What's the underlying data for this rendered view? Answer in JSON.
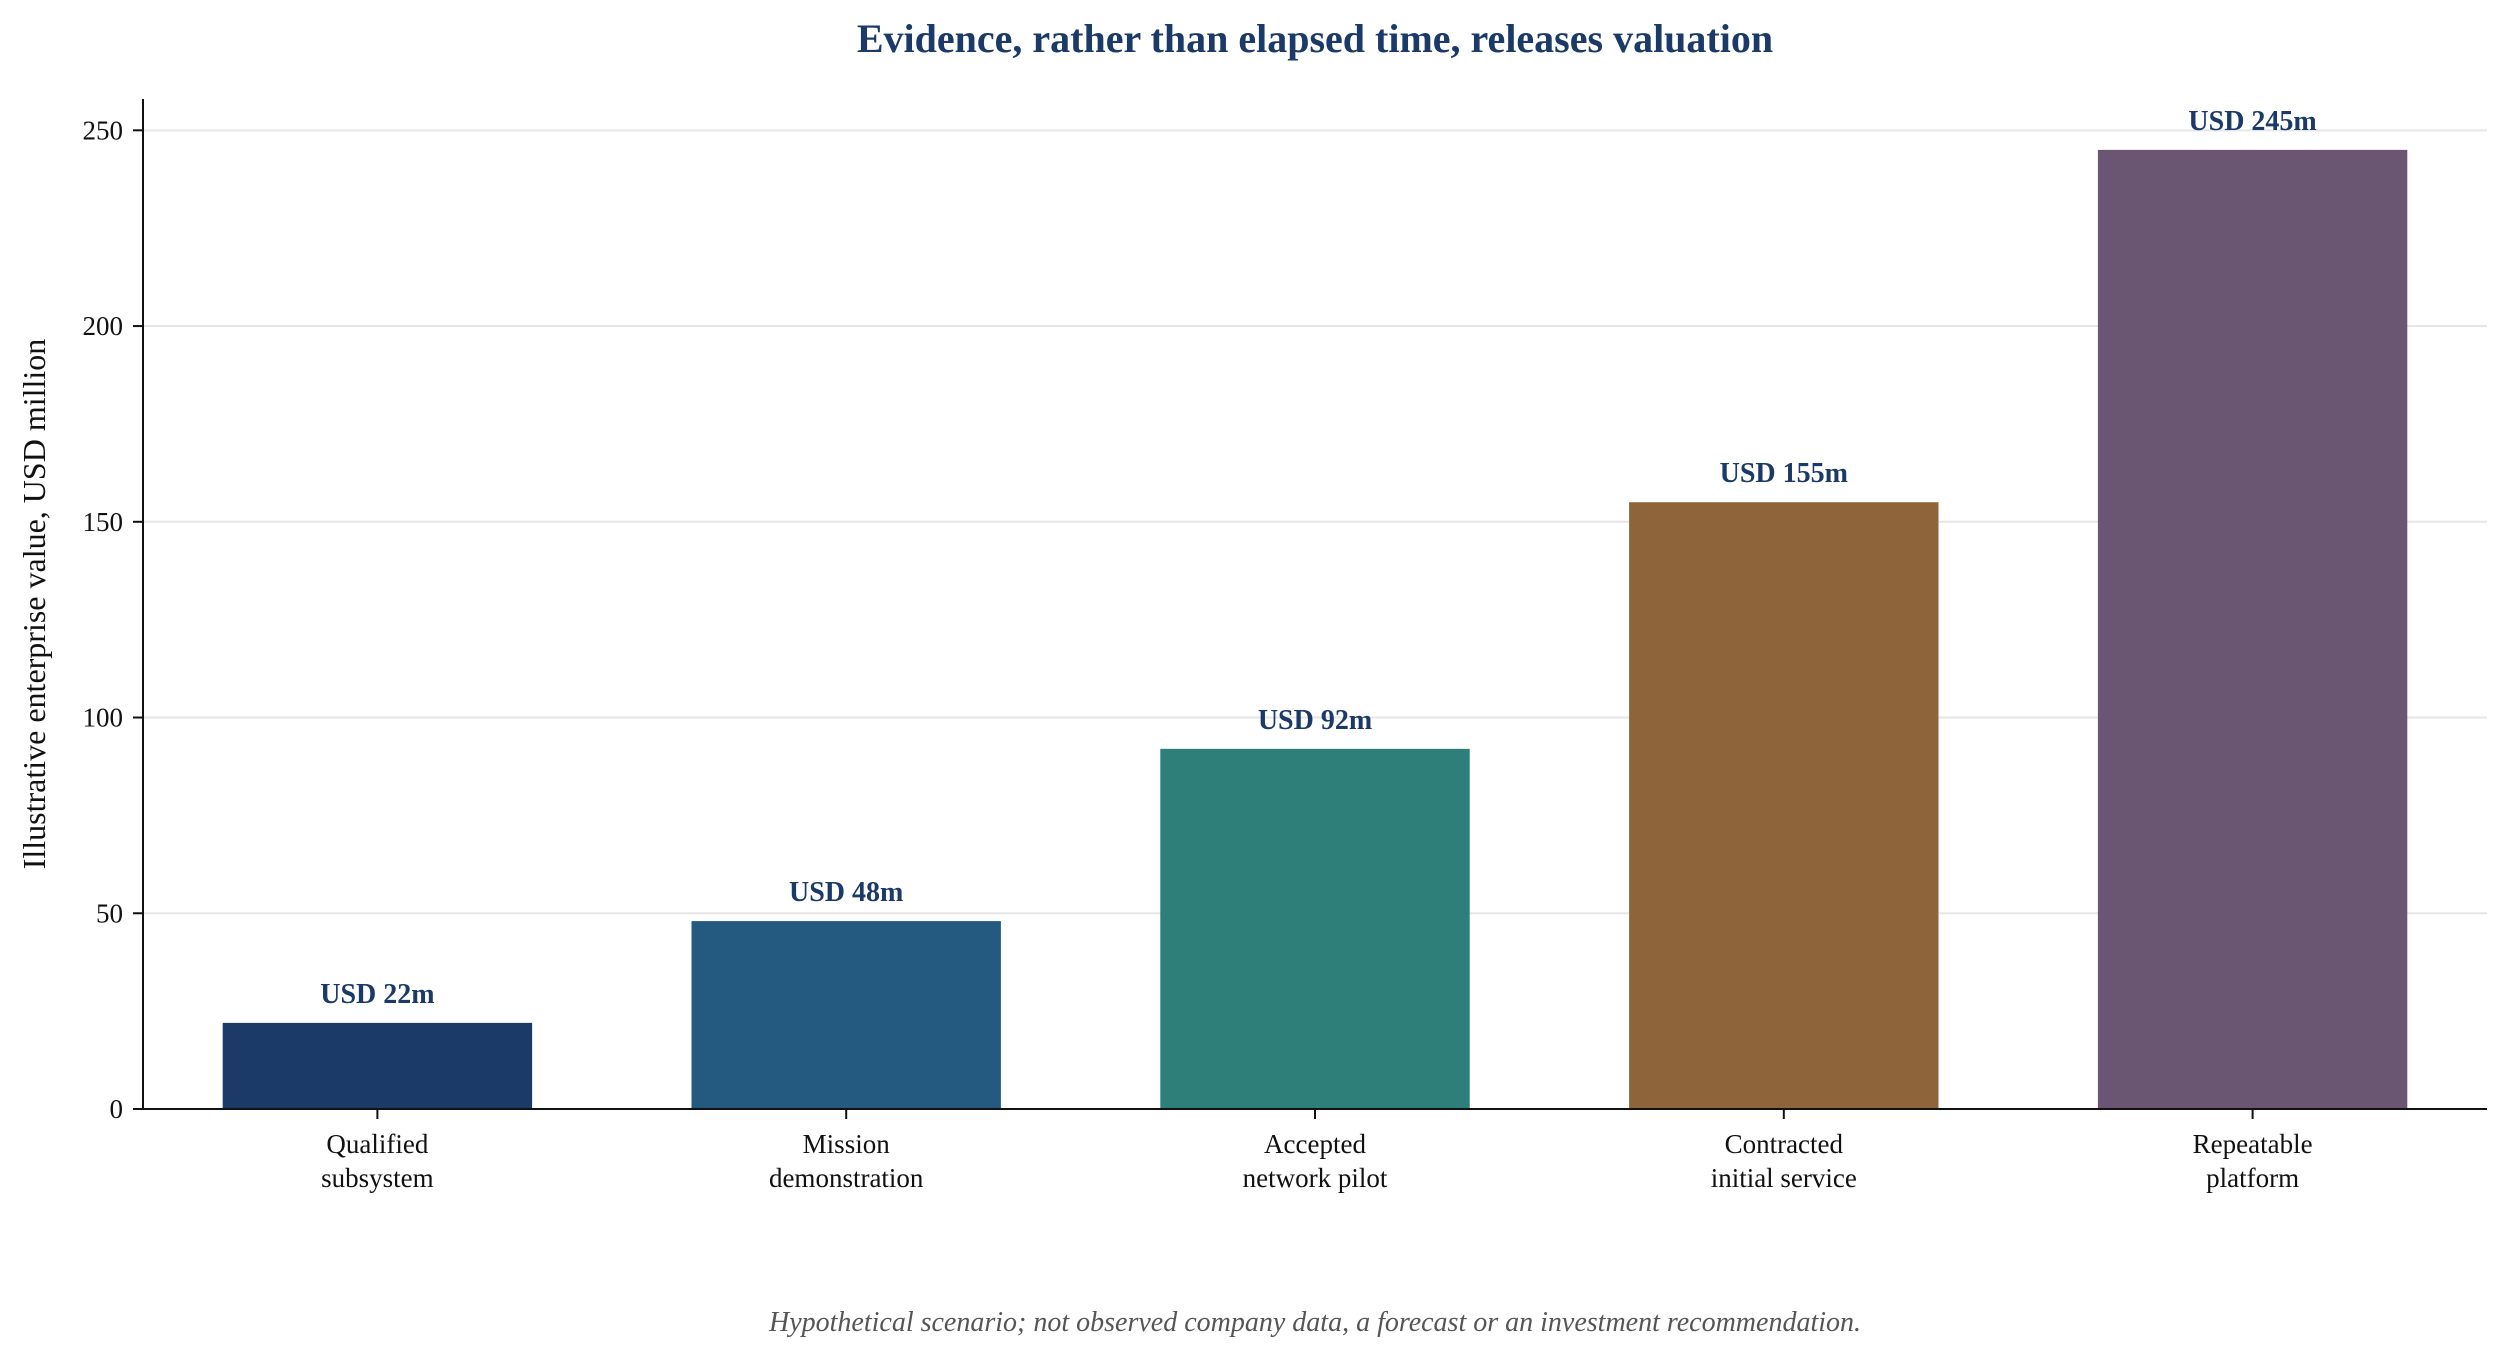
{
  "chart_data": {
    "type": "bar",
    "title": "Evidence, rather than elapsed time, releases valuation",
    "xlabel": "",
    "ylabel": "Illustrative enterprise value, USD million",
    "categories": [
      [
        "Qualified",
        "subsystem"
      ],
      [
        "Mission",
        "demonstration"
      ],
      [
        "Accepted",
        "network pilot"
      ],
      [
        "Contracted",
        "initial service"
      ],
      [
        "Repeatable",
        "platform"
      ]
    ],
    "values": [
      22,
      48,
      92,
      155,
      245
    ],
    "data_labels": [
      "USD 22m",
      "USD 48m",
      "USD 92m",
      "USD 155m",
      "USD 245m"
    ],
    "bar_colors": [
      "#1b3a68",
      "#245a80",
      "#2e7e7a",
      "#8e653a",
      "#6a5673"
    ],
    "ylim": [
      0,
      258
    ],
    "yticks": [
      0,
      50,
      100,
      150,
      200,
      250
    ],
    "grid": "horizontal",
    "legend": "none"
  },
  "footnote": "Hypothetical scenario; not observed company data, a forecast or an investment recommendation.",
  "colors": {
    "title": "#1b3a68",
    "data_label": "#1b3a68",
    "grid": "#e6e6e6",
    "axis": "#111111",
    "footnote": "#555555"
  }
}
